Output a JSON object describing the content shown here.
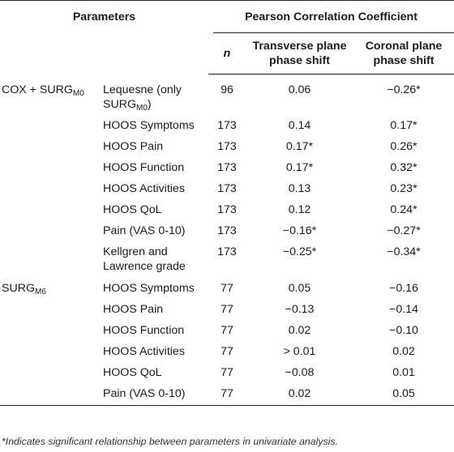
{
  "header": {
    "parameters": "Parameters",
    "pcc": "Pearson Correlation Coefficient",
    "n": "n",
    "transverse_line1": "Transverse plane",
    "transverse_line2": "phase shift",
    "coronal_line1": "Coronal plane",
    "coronal_line2": "phase shift"
  },
  "groups": [
    {
      "label_base": "COX + SURG",
      "label_sub": "M0",
      "rows": [
        {
          "param_line1": "Lequesne (only",
          "param_line2_base": "SURG",
          "param_line2_sub": "M0",
          "param_line2_tail": ")",
          "n": "96",
          "transverse": "0.06",
          "coronal": "−0.26*"
        },
        {
          "param": "HOOS Symptoms",
          "n": "173",
          "transverse": "0.14",
          "coronal": "0.17*"
        },
        {
          "param": "HOOS Pain",
          "n": "173",
          "transverse": "0.17*",
          "coronal": "0.26*"
        },
        {
          "param": "HOOS Function",
          "n": "173",
          "transverse": "0.17*",
          "coronal": "0.32*"
        },
        {
          "param": "HOOS Activities",
          "n": "173",
          "transverse": "0.13",
          "coronal": "0.23*"
        },
        {
          "param": "HOOS QoL",
          "n": "173",
          "transverse": "0.12",
          "coronal": "0.24*"
        },
        {
          "param": "Pain (VAS 0-10)",
          "n": "173",
          "transverse": "−0.16*",
          "coronal": "−0.27*"
        },
        {
          "param_line1": "Kellgren and",
          "param_line2": "Lawrence grade",
          "n": "173",
          "transverse": "−0.25*",
          "coronal": "−0.34*"
        }
      ]
    },
    {
      "label_base": "SURG",
      "label_sub": "M6",
      "rows": [
        {
          "param": "HOOS Symptoms",
          "n": "77",
          "transverse": "0.05",
          "coronal": "−0.16"
        },
        {
          "param": "HOOS Pain",
          "n": "77",
          "transverse": "−0.13",
          "coronal": "−0.14"
        },
        {
          "param": "HOOS Function",
          "n": "77",
          "transverse": "0.02",
          "coronal": "−0.10"
        },
        {
          "param": "HOOS Activities",
          "n": "77",
          "transverse": "> 0.01",
          "coronal": "0.02"
        },
        {
          "param": "HOOS QoL",
          "n": "77",
          "transverse": "−0.08",
          "coronal": "0.01"
        },
        {
          "param": "Pain (VAS 0-10)",
          "n": "77",
          "transverse": "0.02",
          "coronal": "0.05"
        }
      ]
    }
  ],
  "footnote": "*Indicates significant relationship between parameters in univariate analysis."
}
